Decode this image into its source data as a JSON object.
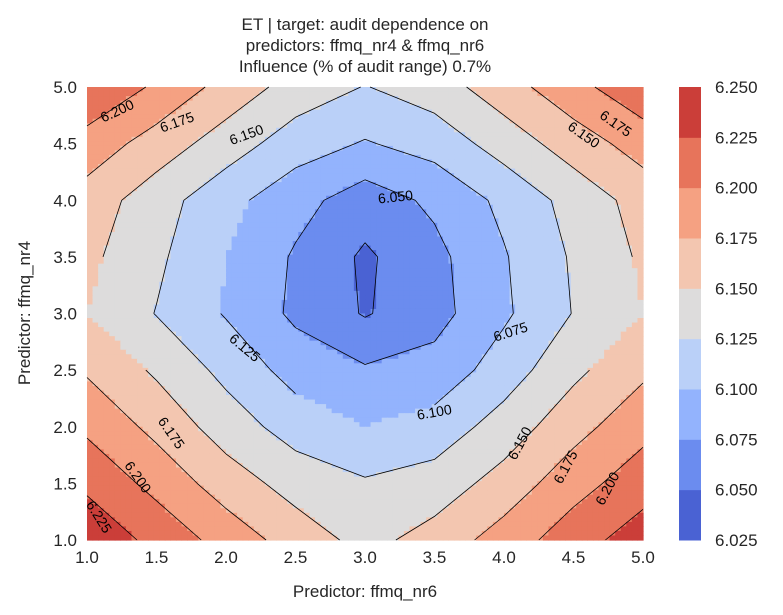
{
  "chart_data": {
    "type": "contour",
    "title": [
      "ET | target: audit dependence on",
      "predictors: ffmq_nr4 & ffmq_nr6",
      "Influence (% of audit range) 0.7%"
    ],
    "xlabel": "Predictor: ffmq_nr6",
    "ylabel": "Predictor: ffmq_nr4",
    "xlim": [
      1.0,
      5.0
    ],
    "ylim": [
      1.0,
      5.0
    ],
    "x_ticks": [
      "1.0",
      "1.5",
      "2.0",
      "2.5",
      "3.0",
      "3.5",
      "4.0",
      "4.5",
      "5.0"
    ],
    "y_ticks": [
      "1.0",
      "1.5",
      "2.0",
      "2.5",
      "3.0",
      "3.5",
      "4.0",
      "4.5",
      "5.0"
    ],
    "x_grid": [
      1.0,
      1.5,
      2.0,
      2.5,
      3.0,
      3.5,
      4.0,
      4.5,
      5.0
    ],
    "y_grid": [
      1.0,
      1.5,
      2.0,
      2.5,
      3.0,
      3.5,
      4.0,
      4.5,
      5.0
    ],
    "z_grid": [
      [
        6.243,
        6.218,
        6.19,
        6.164,
        6.142,
        6.16,
        6.186,
        6.214,
        6.238
      ],
      [
        6.22,
        6.192,
        6.163,
        6.14,
        6.128,
        6.136,
        6.16,
        6.19,
        6.214
      ],
      [
        6.195,
        6.168,
        6.138,
        6.114,
        6.1,
        6.11,
        6.136,
        6.166,
        6.192
      ],
      [
        6.172,
        6.146,
        6.118,
        6.09,
        6.078,
        6.084,
        6.112,
        6.144,
        6.17
      ],
      [
        6.15,
        6.124,
        6.098,
        6.07,
        6.048,
        6.066,
        6.096,
        6.126,
        6.15
      ],
      [
        6.156,
        6.13,
        6.1,
        6.072,
        6.046,
        6.068,
        6.098,
        6.128,
        6.154
      ],
      [
        6.164,
        6.136,
        6.108,
        6.084,
        6.062,
        6.08,
        6.106,
        6.134,
        6.16
      ],
      [
        6.19,
        6.164,
        6.138,
        6.112,
        6.098,
        6.11,
        6.136,
        6.162,
        6.186
      ],
      [
        6.222,
        6.196,
        6.166,
        6.14,
        6.124,
        6.138,
        6.164,
        6.192,
        6.218
      ]
    ],
    "levels": [
      6.025,
      6.05,
      6.075,
      6.1,
      6.125,
      6.15,
      6.175,
      6.2,
      6.225,
      6.25
    ],
    "colors": [
      "#4a62d3",
      "#6b8cef",
      "#93b3fd",
      "#bad0f8",
      "#dddcdc",
      "#f3c6b0",
      "#f5a182",
      "#e7745b",
      "#cb3e39"
    ],
    "colorbar_ticks": [
      "6.025",
      "6.050",
      "6.075",
      "6.100",
      "6.125",
      "6.150",
      "6.175",
      "6.200",
      "6.225",
      "6.250"
    ],
    "contour_labels": [
      {
        "text": "6.225",
        "x": 1.08,
        "y": 1.2,
        "angle": 58
      },
      {
        "text": "6.200",
        "x": 1.36,
        "y": 1.55,
        "angle": 55
      },
      {
        "text": "6.175",
        "x": 1.6,
        "y": 1.94,
        "angle": 55
      },
      {
        "text": "6.125",
        "x": 2.13,
        "y": 2.69,
        "angle": 40
      },
      {
        "text": "6.100",
        "x": 3.5,
        "y": 2.12,
        "angle": -10
      },
      {
        "text": "6.075",
        "x": 4.05,
        "y": 2.83,
        "angle": -18
      },
      {
        "text": "6.050",
        "x": 3.22,
        "y": 4.02,
        "angle": -6
      },
      {
        "text": "6.150",
        "x": 4.12,
        "y": 1.85,
        "angle": -62
      },
      {
        "text": "6.175",
        "x": 4.45,
        "y": 1.64,
        "angle": -62
      },
      {
        "text": "6.200",
        "x": 4.75,
        "y": 1.45,
        "angle": -62
      },
      {
        "text": "6.200",
        "x": 1.22,
        "y": 4.78,
        "angle": -25
      },
      {
        "text": "6.175",
        "x": 1.65,
        "y": 4.68,
        "angle": -20
      },
      {
        "text": "6.150",
        "x": 2.15,
        "y": 4.57,
        "angle": -20
      },
      {
        "text": "6.150",
        "x": 4.57,
        "y": 4.57,
        "angle": 35
      },
      {
        "text": "6.175",
        "x": 4.8,
        "y": 4.67,
        "angle": 35
      }
    ]
  }
}
